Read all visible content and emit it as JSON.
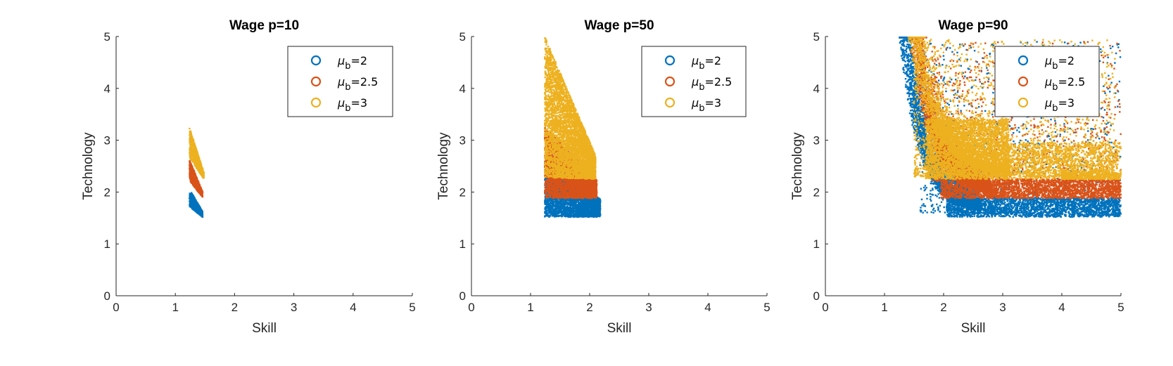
{
  "chart_data": [
    {
      "type": "scatter",
      "title": "Wage p=10",
      "xlabel": "Skill",
      "ylabel": "Technology",
      "xlim": [
        0,
        5
      ],
      "ylim": [
        0,
        5
      ],
      "xticks": [
        "0",
        "1",
        "2",
        "3",
        "4",
        "5"
      ],
      "yticks": [
        "0",
        "1",
        "2",
        "3",
        "4",
        "5"
      ],
      "legend_position": "top-right",
      "series": [
        {
          "name_prefix": "μ",
          "name_sub": "b",
          "name_suffix": "=2",
          "color": "#0072BD",
          "regions": [
            {
              "kind": "band",
              "count": 700,
              "x0": 1.24,
              "x1": 1.46,
              "ylo": [
                1.72,
                1.52
              ],
              "yhi": [
                2.05,
                1.62
              ]
            }
          ]
        },
        {
          "name_prefix": "μ",
          "name_sub": "b",
          "name_suffix": "=2.5",
          "color": "#D95319",
          "regions": [
            {
              "kind": "band",
              "count": 700,
              "x0": 1.24,
              "x1": 1.46,
              "ylo": [
                2.22,
                1.9
              ],
              "yhi": [
                2.62,
                2.0
              ]
            }
          ]
        },
        {
          "name_prefix": "μ",
          "name_sub": "b",
          "name_suffix": "=3",
          "color": "#EDB120",
          "regions": [
            {
              "kind": "band",
              "count": 700,
              "x0": 1.24,
              "x1": 1.48,
              "ylo": [
                2.65,
                2.26
              ],
              "yhi": [
                3.25,
                2.38
              ]
            }
          ]
        }
      ]
    },
    {
      "type": "scatter",
      "title": "Wage p=50",
      "xlabel": "Skill",
      "ylabel": "Technology",
      "xlim": [
        0,
        5
      ],
      "ylim": [
        0,
        5
      ],
      "xticks": [
        "0",
        "1",
        "2",
        "3",
        "4",
        "5"
      ],
      "yticks": [
        "0",
        "1",
        "2",
        "3",
        "4",
        "5"
      ],
      "legend_position": "top-right",
      "series": [
        {
          "name_prefix": "μ",
          "name_sub": "b",
          "name_suffix": "=2",
          "color": "#0072BD",
          "regions": [
            {
              "kind": "band",
              "count": 3200,
              "x0": 1.24,
              "x1": 2.18,
              "ylo": [
                1.52,
                1.52
              ],
              "yhi": [
                2.65,
                1.86
              ]
            }
          ]
        },
        {
          "name_prefix": "μ",
          "name_sub": "b",
          "name_suffix": "=2.5",
          "color": "#D95319",
          "regions": [
            {
              "kind": "band",
              "count": 3200,
              "x0": 1.24,
              "x1": 2.12,
              "ylo": [
                1.88,
                1.88
              ],
              "yhi": [
                3.25,
                2.24
              ]
            }
          ]
        },
        {
          "name_prefix": "μ",
          "name_sub": "b",
          "name_suffix": "=3",
          "color": "#EDB120",
          "regions": [
            {
              "kind": "band",
              "count": 4600,
              "x0": 1.24,
              "x1": 2.1,
              "ylo": [
                2.28,
                2.25
              ],
              "yhi": [
                5.0,
                2.7
              ]
            }
          ]
        }
      ]
    },
    {
      "type": "scatter",
      "title": "Wage p=90",
      "xlabel": "Skill",
      "ylabel": "Technology",
      "xlim": [
        0,
        5
      ],
      "ylim": [
        0,
        5
      ],
      "xticks": [
        "0",
        "1",
        "2",
        "3",
        "4",
        "5"
      ],
      "yticks": [
        "0",
        "1",
        "2",
        "3",
        "4",
        "5"
      ],
      "legend_position": "top-right",
      "series": [
        {
          "name_prefix": "μ",
          "name_sub": "b",
          "name_suffix": "=2",
          "color": "#0072BD",
          "regions": [
            {
              "kind": "curve",
              "count": 3000,
              "x0": 1.25,
              "x1": 2.5,
              "yfar": [
                4.95,
                1.6
              ],
              "ynear": [
                4.95,
                1.52
              ]
            },
            {
              "kind": "rect",
              "count": 2400,
              "x0": 2.05,
              "x1": 5.0,
              "y0": 1.52,
              "y1": 1.9
            },
            {
              "kind": "scatter",
              "count": 900,
              "x0": 1.6,
              "x1": 5.0,
              "y0": 1.6,
              "y1": 4.9
            }
          ]
        },
        {
          "name_prefix": "μ",
          "name_sub": "b",
          "name_suffix": "=2.5",
          "color": "#D95319",
          "regions": [
            {
              "kind": "curve",
              "count": 2600,
              "x0": 1.42,
              "x1": 2.7,
              "yfar": [
                4.95,
                1.95
              ],
              "ynear": [
                4.95,
                1.88
              ]
            },
            {
              "kind": "rect",
              "count": 2600,
              "x0": 1.95,
              "x1": 5.0,
              "y0": 1.88,
              "y1": 2.25
            },
            {
              "kind": "scatter",
              "count": 900,
              "x0": 1.8,
              "x1": 5.0,
              "y0": 2.2,
              "y1": 4.9
            }
          ]
        },
        {
          "name_prefix": "μ",
          "name_sub": "b",
          "name_suffix": "=3",
          "color": "#EDB120",
          "regions": [
            {
              "kind": "rect",
              "count": 3200,
              "x0": 1.7,
              "x1": 3.1,
              "y0": 2.25,
              "y1": 3.4
            },
            {
              "kind": "curve",
              "count": 2000,
              "x0": 1.4,
              "x1": 3.0,
              "yfar": [
                4.95,
                2.3
              ],
              "ynear": [
                4.95,
                2.25
              ]
            },
            {
              "kind": "rect",
              "count": 1400,
              "x0": 3.0,
              "x1": 5.0,
              "y0": 2.25,
              "y1": 2.95
            },
            {
              "kind": "scatter",
              "count": 1800,
              "x0": 1.5,
              "x1": 4.9,
              "y0": 2.3,
              "y1": 4.95
            },
            {
              "kind": "scatter",
              "count": 400,
              "x0": 4.0,
              "x1": 5.0,
              "y0": 2.25,
              "y1": 2.4
            }
          ]
        }
      ]
    }
  ]
}
